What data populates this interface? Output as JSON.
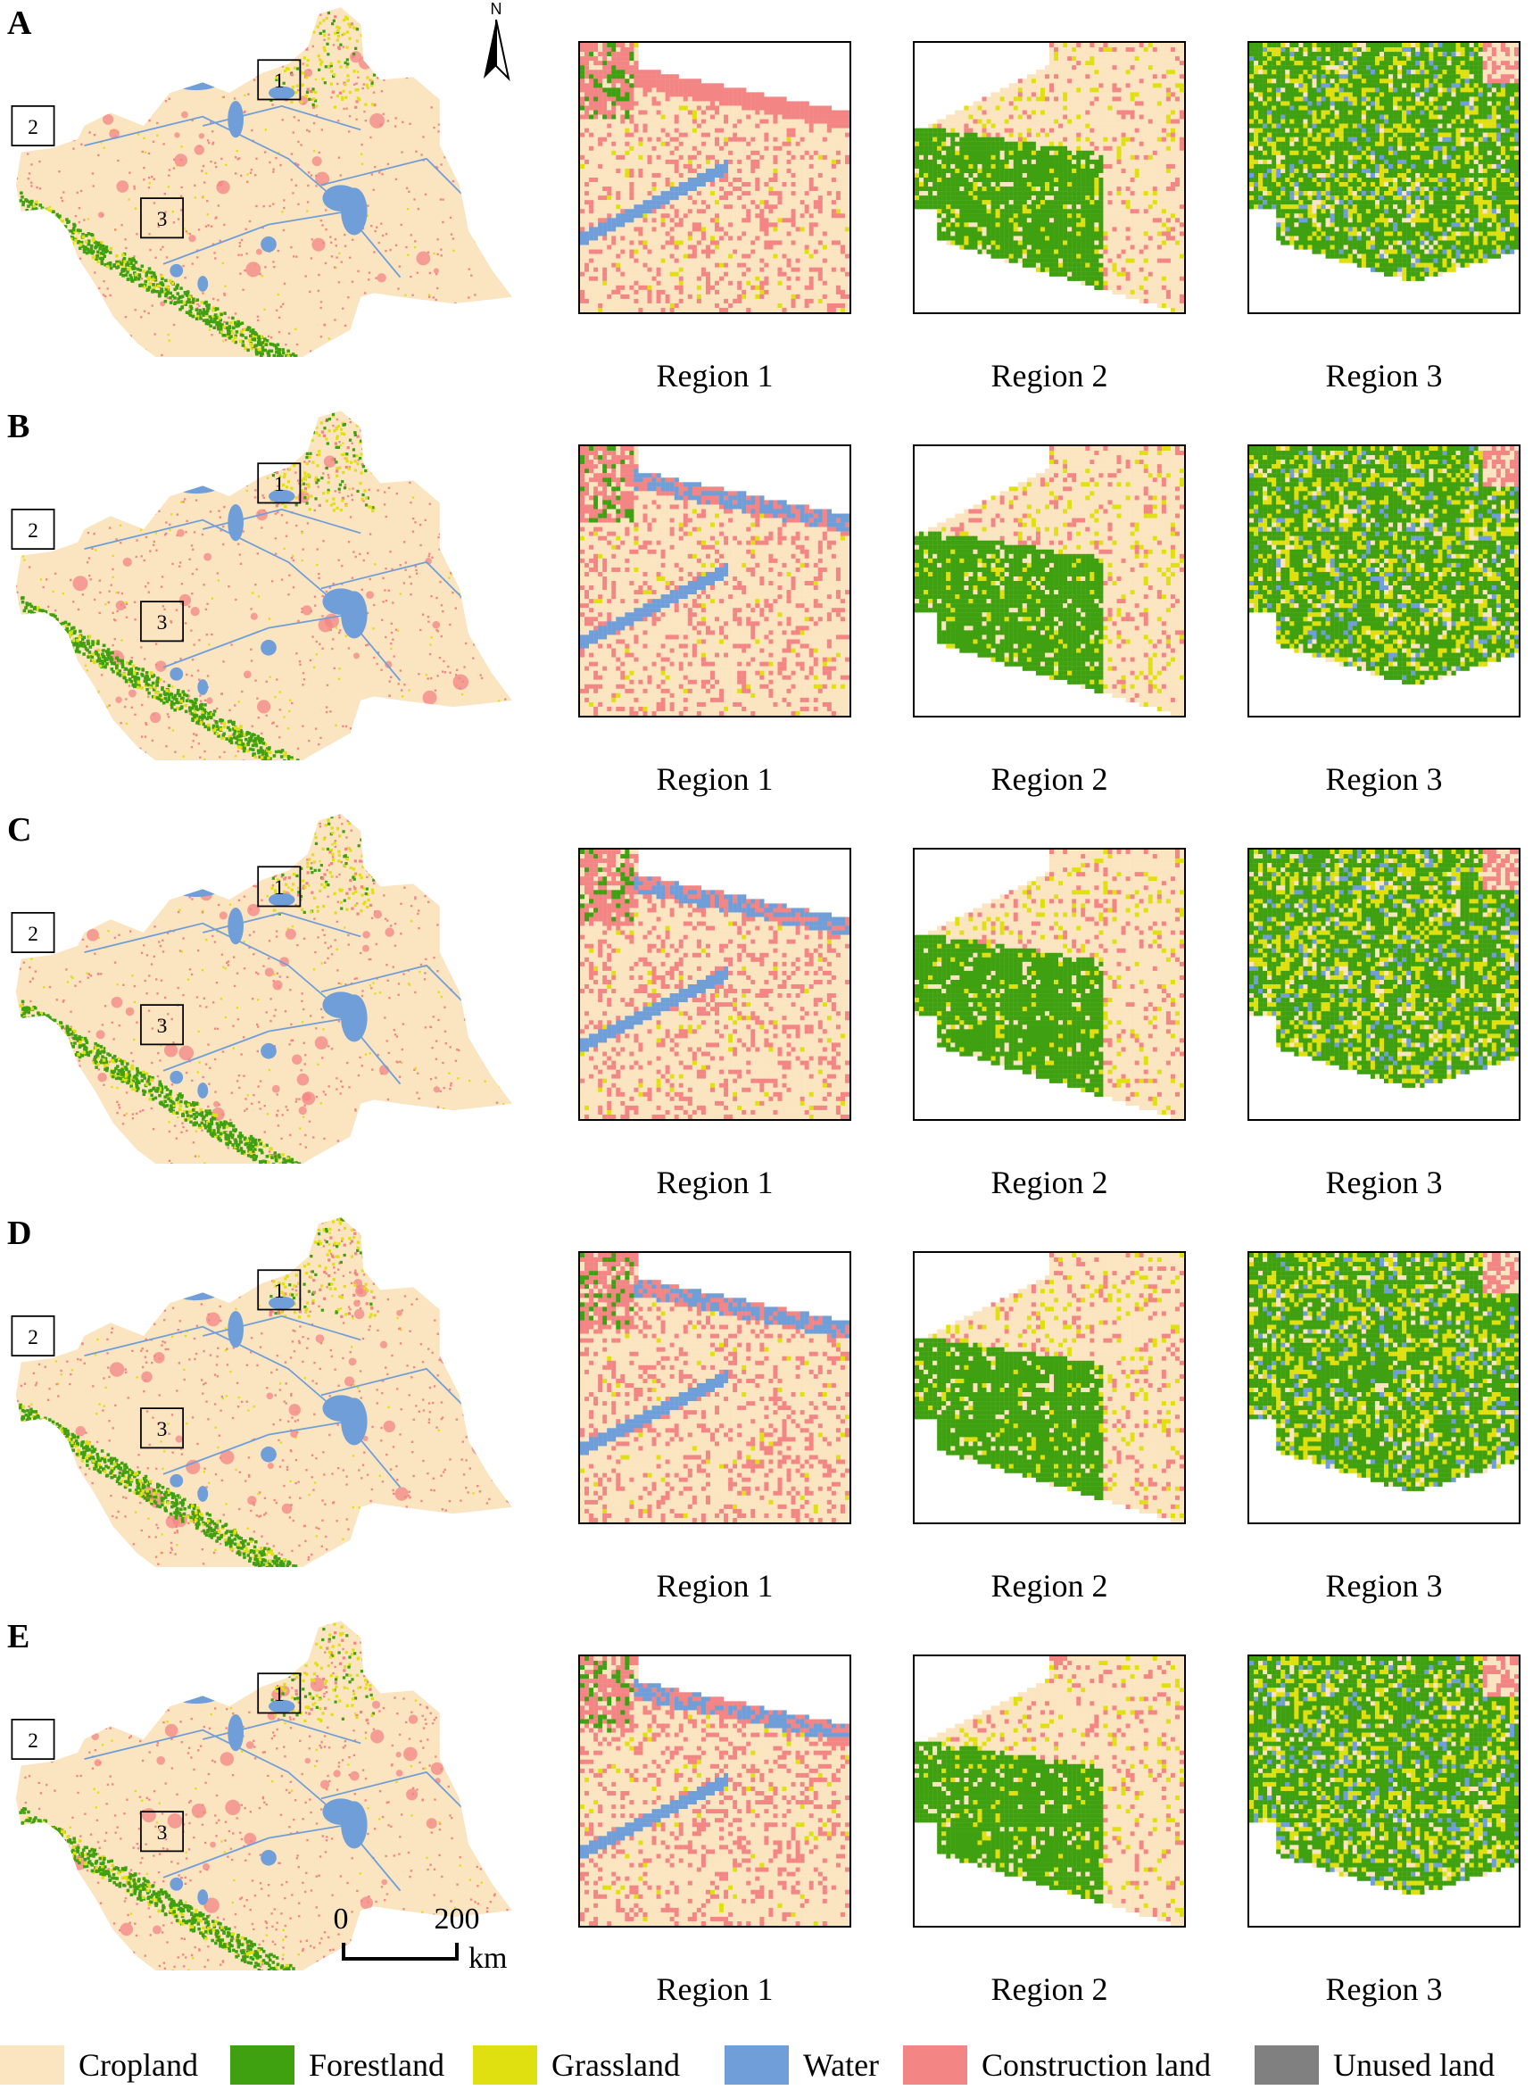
{
  "panels": [
    {
      "letter": "A",
      "regions": [
        "Region 1",
        "Region 2",
        "Region 3"
      ]
    },
    {
      "letter": "B",
      "regions": [
        "Region 1",
        "Region 2",
        "Region 3"
      ]
    },
    {
      "letter": "C",
      "regions": [
        "Region 1",
        "Region 2",
        "Region 3"
      ]
    },
    {
      "letter": "D",
      "regions": [
        "Region 1",
        "Region 2",
        "Region 3"
      ]
    },
    {
      "letter": "E",
      "regions": [
        "Region 1",
        "Region 2",
        "Region 3"
      ]
    }
  ],
  "box_labels": [
    "1",
    "2",
    "3"
  ],
  "north_label": "N",
  "scale": {
    "start": "0",
    "end": "200",
    "unit": "km"
  },
  "legend": [
    {
      "label": "Cropland",
      "color": "#fbe4c0"
    },
    {
      "label": "Forestland",
      "color": "#3fa010"
    },
    {
      "label": "Grassland",
      "color": "#e0e010"
    },
    {
      "label": "Water",
      "color": "#6f9ed8"
    },
    {
      "label": "Construction land",
      "color": "#f38585"
    },
    {
      "label": "Unused land",
      "color": "#808080"
    }
  ]
}
